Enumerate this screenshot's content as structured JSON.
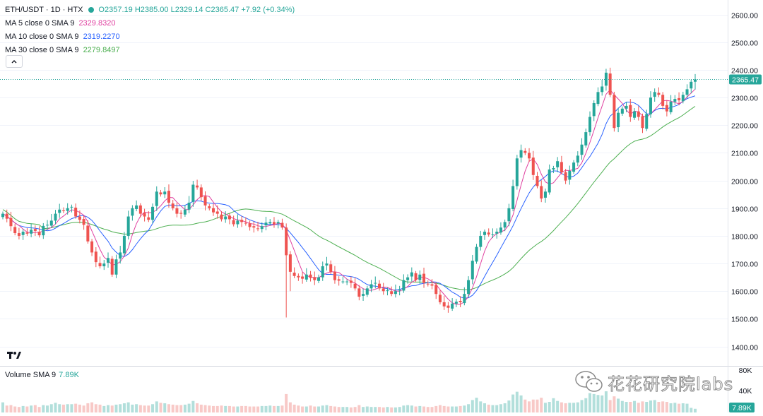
{
  "legend": {
    "symbol": "ETH/USDT · 1D · HTX",
    "open": "O2357.19",
    "high": "H2385.00",
    "low": "L2329.14",
    "close": "C2365.47",
    "change": "+7.92 (+0.34%)",
    "ma5": {
      "label": "MA 5 close 0 SMA 9",
      "value": "2329.8320",
      "color": "#e040a0"
    },
    "ma10": {
      "label": "MA 10 close 0 SMA 9",
      "value": "2319.2270",
      "color": "#2962ff"
    },
    "ma30": {
      "label": "MA 30 close 0 SMA 9",
      "value": "2279.8497",
      "color": "#4caf50"
    }
  },
  "collapse_icon": "chevron-up-icon",
  "logo": "TV",
  "volume_legend": {
    "label": "Volume SMA 9",
    "value": "7.89K"
  },
  "watermark": {
    "text": "花花研究院labs",
    "icon": "wechat-icon"
  },
  "colors": {
    "up": "#26a69a",
    "down": "#ef5350",
    "up_vol": "#b2dfdb",
    "down_vol": "#f8c9c7"
  },
  "chart_data": {
    "type": "candlestick",
    "price_axis": {
      "ticks": [
        1400,
        1500,
        1600,
        1700,
        1800,
        1900,
        2000,
        2100,
        2200,
        2300,
        2400,
        2500,
        2600
      ],
      "ylim": [
        1330,
        2640
      ]
    },
    "last_price_label": "2365.47",
    "volume_axis": {
      "ticks": [
        "80K",
        "40K"
      ],
      "last_label": "7.89K",
      "ylim": [
        0,
        92
      ]
    },
    "closes": [
      1880,
      1862,
      1835,
      1810,
      1800,
      1815,
      1808,
      1822,
      1818,
      1802,
      1836,
      1840,
      1855,
      1880,
      1895,
      1890,
      1900,
      1905,
      1870,
      1858,
      1840,
      1780,
      1740,
      1705,
      1690,
      1700,
      1720,
      1660,
      1715,
      1740,
      1800,
      1870,
      1900,
      1910,
      1880,
      1870,
      1858,
      1905,
      1960,
      1950,
      1960,
      1920,
      1900,
      1880,
      1880,
      1895,
      1920,
      1985,
      1975,
      1940,
      1910,
      1900,
      1885,
      1880,
      1860,
      1870,
      1860,
      1842,
      1855,
      1850,
      1845,
      1832,
      1830,
      1825,
      1835,
      1848,
      1850,
      1842,
      1850,
      1830,
      1730,
      1670,
      1655,
      1650,
      1645,
      1660,
      1648,
      1640,
      1650,
      1690,
      1700,
      1670,
      1640,
      1638,
      1635,
      1635,
      1630,
      1610,
      1580,
      1590,
      1610,
      1625,
      1630,
      1610,
      1600,
      1603,
      1590,
      1600,
      1605,
      1640,
      1650,
      1668,
      1640,
      1660,
      1630,
      1625,
      1620,
      1590,
      1560,
      1545,
      1540,
      1555,
      1562,
      1560,
      1590,
      1640,
      1710,
      1760,
      1800,
      1815,
      1805,
      1805,
      1815,
      1830,
      1850,
      1900,
      1980,
      2080,
      2110,
      2100,
      2080,
      2020,
      1980,
      1935,
      1960,
      2040,
      2045,
      2070,
      2030,
      2000,
      2035,
      2065,
      2090,
      2130,
      2175,
      2230,
      2280,
      2320,
      2340,
      2390,
      2310,
      2190,
      2245,
      2260,
      2270,
      2230,
      2250,
      2230,
      2190,
      2240,
      2300,
      2320,
      2310,
      2270,
      2250,
      2285,
      2295,
      2290,
      2310,
      2330,
      2357,
      2365.47
    ],
    "volume": [
      22,
      15,
      16,
      13,
      12,
      14,
      13,
      15,
      16,
      12,
      16,
      15,
      18,
      21,
      18,
      17,
      18,
      18,
      19,
      17,
      15,
      20,
      22,
      18,
      17,
      14,
      16,
      15,
      17,
      18,
      20,
      22,
      17,
      18,
      16,
      15,
      15,
      18,
      24,
      21,
      20,
      18,
      17,
      16,
      16,
      17,
      19,
      25,
      20,
      17,
      16,
      15,
      14,
      14,
      15,
      14,
      14,
      13,
      13,
      14,
      14,
      13,
      13,
      13,
      14,
      14,
      15,
      14,
      14,
      15,
      40,
      22,
      17,
      15,
      13,
      13,
      15,
      13,
      13,
      15,
      16,
      14,
      13,
      12,
      12,
      12,
      11,
      12,
      16,
      12,
      13,
      12,
      12,
      12,
      11,
      12,
      11,
      11,
      12,
      15,
      16,
      15,
      13,
      14,
      13,
      12,
      12,
      14,
      16,
      14,
      13,
      13,
      13,
      14,
      15,
      18,
      27,
      32,
      24,
      20,
      17,
      16,
      16,
      18,
      20,
      26,
      39,
      45,
      37,
      28,
      24,
      28,
      28,
      32,
      21,
      23,
      31,
      25,
      22,
      20,
      21,
      21,
      22,
      27,
      31,
      42,
      40,
      38,
      37,
      46,
      27,
      35,
      30,
      25,
      23,
      23,
      25,
      21,
      24,
      23,
      26,
      27,
      23,
      24,
      23,
      20,
      21,
      19,
      20,
      19,
      10,
      8
    ]
  }
}
